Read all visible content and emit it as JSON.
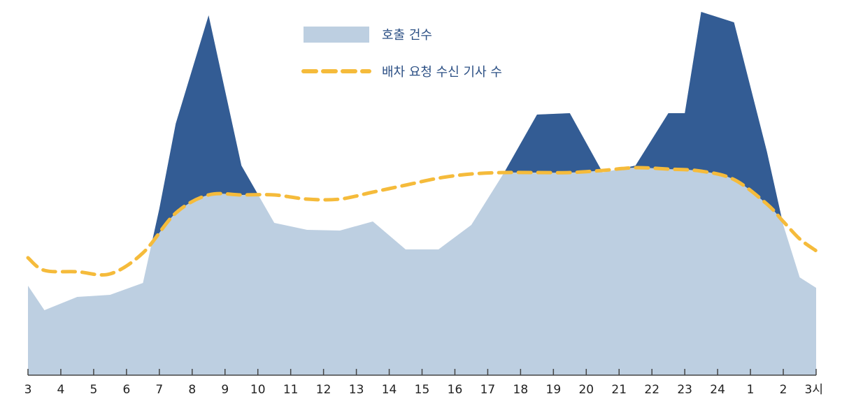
{
  "chart_data": {
    "type": "area",
    "categories": [
      "3",
      "4",
      "5",
      "6",
      "7",
      "8",
      "9",
      "10",
      "11",
      "12",
      "13",
      "14",
      "15",
      "16",
      "17",
      "18",
      "19",
      "20",
      "21",
      "22",
      "23",
      "24",
      "1",
      "2",
      "3시"
    ],
    "series": [
      {
        "name": "호출 건수",
        "kind": "area",
        "x": [
          0,
          0.5,
          1.5,
          2.5,
          3.5,
          4.0,
          4.5,
          5.5,
          6.5,
          7.5,
          8.5,
          9.5,
          10.5,
          11.5,
          12.5,
          13.5,
          14.5,
          15.5,
          16.5,
          17.5,
          18.5,
          19.5,
          20.0,
          20.5,
          21.5,
          22.5,
          23.0,
          23.5,
          24.0
        ],
        "values": [
          128,
          93,
          112,
          115,
          132,
          238,
          360,
          515,
          300,
          218,
          208,
          207,
          220,
          180,
          180,
          215,
          290,
          373,
          375,
          290,
          300,
          375,
          375,
          520,
          505,
          320,
          215,
          140,
          125
        ]
      },
      {
        "name": "배차 요청 수신 기사 수",
        "kind": "line",
        "x": [
          0,
          0.5,
          1.5,
          2.5,
          3.5,
          4.5,
          5.5,
          6.5,
          7.5,
          8.5,
          9.5,
          10.5,
          11.5,
          12.5,
          13.5,
          14.5,
          15.5,
          16.5,
          17.5,
          18.5,
          19.5,
          20.5,
          21.5,
          22.5,
          23.0,
          23.5,
          24.0
        ],
        "values": [
          168,
          150,
          148,
          145,
          175,
          232,
          258,
          258,
          258,
          252,
          252,
          262,
          272,
          282,
          288,
          290,
          290,
          290,
          293,
          297,
          295,
          292,
          280,
          245,
          220,
          195,
          178
        ]
      }
    ],
    "ylim": [
      0,
      520
    ],
    "grid": false,
    "legend_position": "top-center"
  },
  "colors": {
    "area": "#bdcfe1",
    "excess": "#335c94",
    "line": "#f5bb3b",
    "axis": "#444444",
    "legend_text": "#2b4f84"
  }
}
